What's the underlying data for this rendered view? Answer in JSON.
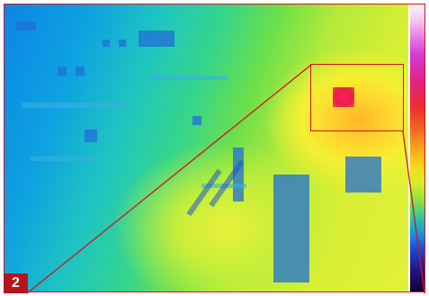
{
  "figure": {
    "badge_label": "2",
    "colors": {
      "callout_red": "#d2141e",
      "badge_red": "#b8121e",
      "badge_text": "#ffffff"
    }
  }
}
